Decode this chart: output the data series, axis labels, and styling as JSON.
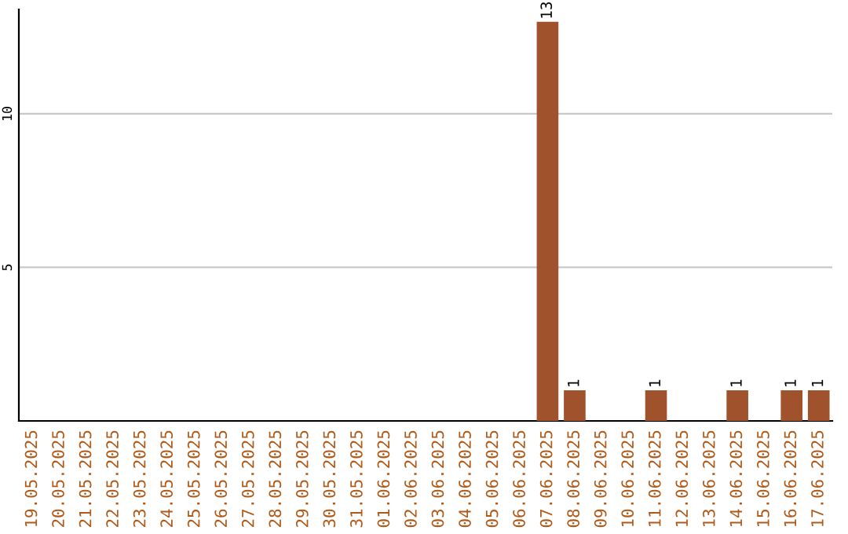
{
  "chart_data": {
    "type": "bar",
    "categories": [
      "19.05.2025",
      "20.05.2025",
      "21.05.2025",
      "22.05.2025",
      "23.05.2025",
      "24.05.2025",
      "25.05.2025",
      "26.05.2025",
      "27.05.2025",
      "28.05.2025",
      "29.05.2025",
      "30.05.2025",
      "31.05.2025",
      "01.06.2025",
      "02.06.2025",
      "03.06.2025",
      "04.06.2025",
      "05.06.2025",
      "06.06.2025",
      "07.06.2025",
      "08.06.2025",
      "09.06.2025",
      "10.06.2025",
      "11.06.2025",
      "12.06.2025",
      "13.06.2025",
      "14.06.2025",
      "15.06.2025",
      "16.06.2025",
      "17.06.2025"
    ],
    "values": [
      0,
      0,
      0,
      0,
      0,
      0,
      0,
      0,
      0,
      0,
      0,
      0,
      0,
      0,
      0,
      0,
      0,
      0,
      0,
      13,
      1,
      0,
      0,
      1,
      0,
      0,
      1,
      0,
      1,
      1
    ],
    "value_labels": [
      null,
      null,
      null,
      null,
      null,
      null,
      null,
      null,
      null,
      null,
      null,
      null,
      null,
      null,
      null,
      null,
      null,
      null,
      null,
      "13",
      "1",
      null,
      null,
      "1",
      null,
      null,
      "1",
      null,
      "1",
      "1"
    ],
    "color": "#a0522d",
    "ylim": [
      0,
      13.4
    ],
    "yticks": [
      5,
      10
    ],
    "grid": "y",
    "legend": false
  }
}
